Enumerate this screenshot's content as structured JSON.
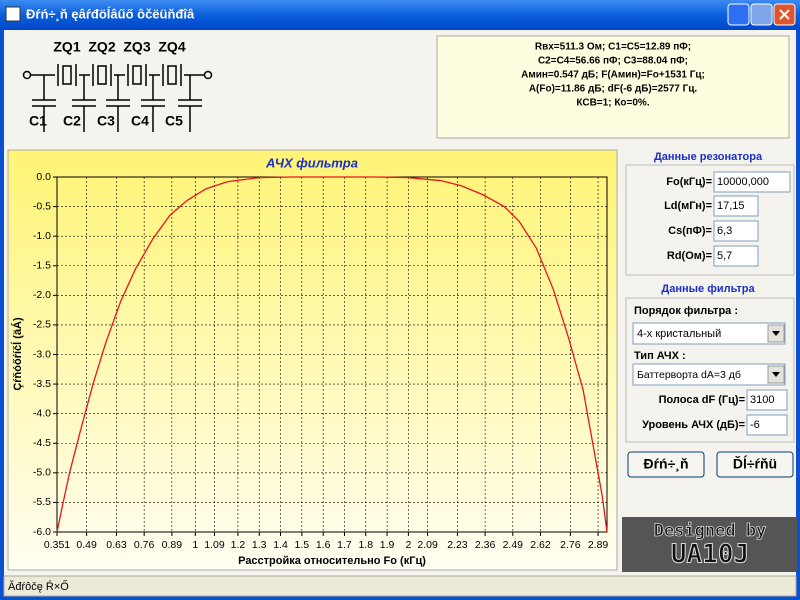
{
  "window": {
    "title": "Ðŕń÷¸ň ęâŕđöĺâűő ôčëüňđîâ",
    "status": "Ăđŕôčę Ŕ×Ő"
  },
  "schematic": {
    "crystals": [
      "ZQ1",
      "ZQ2",
      "ZQ3",
      "ZQ4"
    ],
    "capacitors": [
      "C1",
      "C2",
      "C3",
      "C4",
      "C5"
    ]
  },
  "results": [
    "Rвх=511.3 Ом; C1=C5=12.89 пФ;",
    "C2=C4=56.66 пФ; C3=88.04 пФ;",
    "Амин=0.547 дБ; F(Амин)=Fo+1531 Гц;",
    "A(Fo)=11.86 дБ; dF(-6 дБ)=2577 Гц.",
    "КСВ=1; Ко=0%."
  ],
  "chart_data": {
    "type": "line",
    "title": "АЧХ фильтра",
    "xlabel": "Расстройка относительно Fo (кГц)",
    "ylabel": "Çŕňóőŕíčĺ (äÁ)",
    "x": [
      0.351,
      0.38,
      0.41,
      0.46,
      0.52,
      0.58,
      0.65,
      0.72,
      0.8,
      0.88,
      0.96,
      1.05,
      1.15,
      1.3,
      1.45,
      1.64,
      1.85,
      2.0,
      2.15,
      2.25,
      2.35,
      2.45,
      2.52,
      2.6,
      2.68,
      2.75,
      2.82,
      2.87,
      2.91,
      2.932
    ],
    "values": [
      -6,
      -5.5,
      -5.0,
      -4.3,
      -3.5,
      -2.8,
      -2.1,
      -1.55,
      -1.05,
      -0.65,
      -0.4,
      -0.2,
      -0.08,
      -0.01,
      0,
      0,
      0,
      -0.01,
      -0.06,
      -0.15,
      -0.3,
      -0.5,
      -0.75,
      -1.2,
      -1.9,
      -2.7,
      -3.6,
      -4.6,
      -5.4,
      -6
    ],
    "color": "#e8161b",
    "xlim": [
      0.351,
      2.932
    ],
    "xticks": [
      0.351,
      0.49,
      0.63,
      0.76,
      0.89,
      1,
      1.09,
      1.2,
      1.3,
      1.4,
      1.5,
      1.6,
      1.7,
      1.8,
      1.9,
      2,
      2.09,
      2.23,
      2.36,
      2.49,
      2.62,
      2.76,
      2.89
    ],
    "ylim": [
      -6,
      0
    ],
    "yticks": [
      {
        "value": 0,
        "label": "0.0"
      },
      -0.5,
      {
        "value": -1,
        "label": "-1.0"
      },
      -1.5,
      {
        "value": -2,
        "label": "-2.0"
      },
      -2.5,
      {
        "value": -3,
        "label": "-3.0"
      },
      -3.5,
      {
        "value": -4,
        "label": "-4.0"
      },
      -4.5,
      {
        "value": -5,
        "label": "-5.0"
      },
      -5.5,
      {
        "value": -6,
        "label": "-6.0"
      }
    ],
    "grid": true
  },
  "resonator": {
    "heading": "Данные резонатора",
    "fields": [
      {
        "label": "Fo(кГц)=",
        "value": "10000,000"
      },
      {
        "label": "Ld(мГн)=",
        "value": "17,15"
      },
      {
        "label": "Cs(пФ)=",
        "value": "6,3"
      },
      {
        "label": "Rd(Ом)=",
        "value": "5,7"
      }
    ]
  },
  "filter": {
    "heading": "Данные фильтра",
    "order_label": "Порядок фильтра :",
    "order": "4-х кристальный",
    "type_label": "Тип АЧХ :",
    "type": "Баттерворта dA=3 дб",
    "fields": [
      {
        "label": "Полоса dF (Гц)=",
        "value": "3100"
      },
      {
        "label": "Уровень АЧХ (дБ)=",
        "value": "-6"
      }
    ]
  },
  "buttons": [
    "Ðŕń÷¸ň",
    "Ďĺ÷ŕňü"
  ],
  "logo": {
    "line1": "Designed by",
    "line2": "UA10J"
  }
}
